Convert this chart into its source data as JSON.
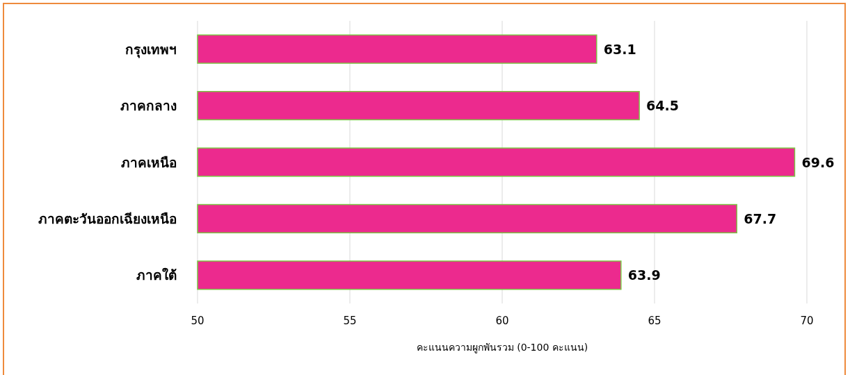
{
  "chart_data": {
    "type": "bar",
    "orientation": "horizontal",
    "categories": [
      "กรุงเทพฯ",
      "ภาคกลาง",
      "ภาคเหนือ",
      "ภาคตะวันออกเฉียงเหนือ",
      "ภาคใต้"
    ],
    "values": [
      63.1,
      64.5,
      69.6,
      67.7,
      63.9
    ],
    "color": "#ec2a8e",
    "xlabel": "คะแนนความผูกพันรวม (0-100 คะแนน)",
    "xlim": [
      50,
      70
    ],
    "xticks": [
      50,
      55,
      60,
      65,
      70
    ],
    "grid": "x",
    "data_labels": true
  }
}
